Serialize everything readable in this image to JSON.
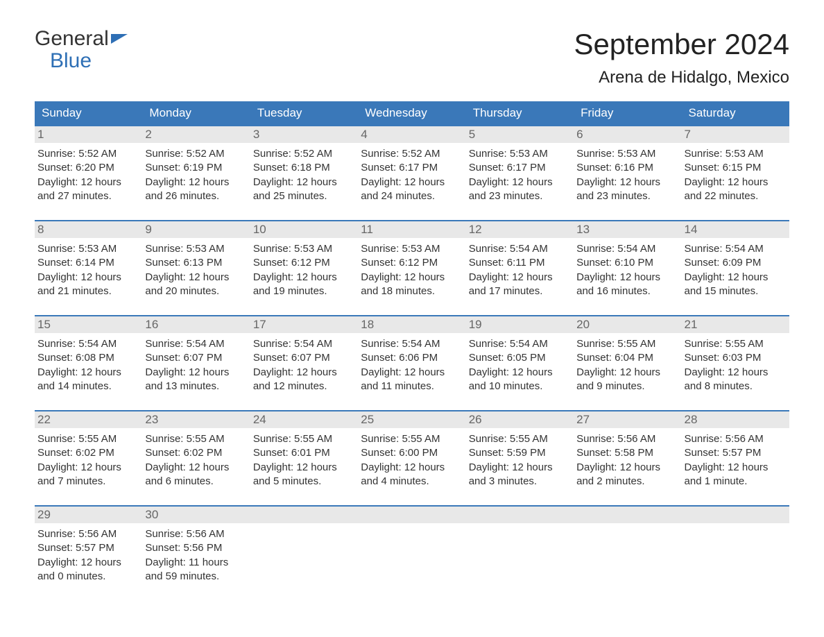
{
  "logo": {
    "word1": "General",
    "word2": "Blue",
    "primary_color": "#333333",
    "accent_color": "#2e6fb5"
  },
  "title": "September 2024",
  "location": "Arena de Hidalgo, Mexico",
  "colors": {
    "header_bg": "#3a78b9",
    "header_text": "#ffffff",
    "daynum_bg": "#e8e8e8",
    "daynum_text": "#666666",
    "body_text": "#333333",
    "border": "#3a78b9",
    "page_bg": "#ffffff"
  },
  "day_headers": [
    "Sunday",
    "Monday",
    "Tuesday",
    "Wednesday",
    "Thursday",
    "Friday",
    "Saturday"
  ],
  "weeks": [
    [
      {
        "num": 1,
        "sunrise": "5:52 AM",
        "sunset": "6:20 PM",
        "daylight": "12 hours and 27 minutes."
      },
      {
        "num": 2,
        "sunrise": "5:52 AM",
        "sunset": "6:19 PM",
        "daylight": "12 hours and 26 minutes."
      },
      {
        "num": 3,
        "sunrise": "5:52 AM",
        "sunset": "6:18 PM",
        "daylight": "12 hours and 25 minutes."
      },
      {
        "num": 4,
        "sunrise": "5:52 AM",
        "sunset": "6:17 PM",
        "daylight": "12 hours and 24 minutes."
      },
      {
        "num": 5,
        "sunrise": "5:53 AM",
        "sunset": "6:17 PM",
        "daylight": "12 hours and 23 minutes."
      },
      {
        "num": 6,
        "sunrise": "5:53 AM",
        "sunset": "6:16 PM",
        "daylight": "12 hours and 23 minutes."
      },
      {
        "num": 7,
        "sunrise": "5:53 AM",
        "sunset": "6:15 PM",
        "daylight": "12 hours and 22 minutes."
      }
    ],
    [
      {
        "num": 8,
        "sunrise": "5:53 AM",
        "sunset": "6:14 PM",
        "daylight": "12 hours and 21 minutes."
      },
      {
        "num": 9,
        "sunrise": "5:53 AM",
        "sunset": "6:13 PM",
        "daylight": "12 hours and 20 minutes."
      },
      {
        "num": 10,
        "sunrise": "5:53 AM",
        "sunset": "6:12 PM",
        "daylight": "12 hours and 19 minutes."
      },
      {
        "num": 11,
        "sunrise": "5:53 AM",
        "sunset": "6:12 PM",
        "daylight": "12 hours and 18 minutes."
      },
      {
        "num": 12,
        "sunrise": "5:54 AM",
        "sunset": "6:11 PM",
        "daylight": "12 hours and 17 minutes."
      },
      {
        "num": 13,
        "sunrise": "5:54 AM",
        "sunset": "6:10 PM",
        "daylight": "12 hours and 16 minutes."
      },
      {
        "num": 14,
        "sunrise": "5:54 AM",
        "sunset": "6:09 PM",
        "daylight": "12 hours and 15 minutes."
      }
    ],
    [
      {
        "num": 15,
        "sunrise": "5:54 AM",
        "sunset": "6:08 PM",
        "daylight": "12 hours and 14 minutes."
      },
      {
        "num": 16,
        "sunrise": "5:54 AM",
        "sunset": "6:07 PM",
        "daylight": "12 hours and 13 minutes."
      },
      {
        "num": 17,
        "sunrise": "5:54 AM",
        "sunset": "6:07 PM",
        "daylight": "12 hours and 12 minutes."
      },
      {
        "num": 18,
        "sunrise": "5:54 AM",
        "sunset": "6:06 PM",
        "daylight": "12 hours and 11 minutes."
      },
      {
        "num": 19,
        "sunrise": "5:54 AM",
        "sunset": "6:05 PM",
        "daylight": "12 hours and 10 minutes."
      },
      {
        "num": 20,
        "sunrise": "5:55 AM",
        "sunset": "6:04 PM",
        "daylight": "12 hours and 9 minutes."
      },
      {
        "num": 21,
        "sunrise": "5:55 AM",
        "sunset": "6:03 PM",
        "daylight": "12 hours and 8 minutes."
      }
    ],
    [
      {
        "num": 22,
        "sunrise": "5:55 AM",
        "sunset": "6:02 PM",
        "daylight": "12 hours and 7 minutes."
      },
      {
        "num": 23,
        "sunrise": "5:55 AM",
        "sunset": "6:02 PM",
        "daylight": "12 hours and 6 minutes."
      },
      {
        "num": 24,
        "sunrise": "5:55 AM",
        "sunset": "6:01 PM",
        "daylight": "12 hours and 5 minutes."
      },
      {
        "num": 25,
        "sunrise": "5:55 AM",
        "sunset": "6:00 PM",
        "daylight": "12 hours and 4 minutes."
      },
      {
        "num": 26,
        "sunrise": "5:55 AM",
        "sunset": "5:59 PM",
        "daylight": "12 hours and 3 minutes."
      },
      {
        "num": 27,
        "sunrise": "5:56 AM",
        "sunset": "5:58 PM",
        "daylight": "12 hours and 2 minutes."
      },
      {
        "num": 28,
        "sunrise": "5:56 AM",
        "sunset": "5:57 PM",
        "daylight": "12 hours and 1 minute."
      }
    ],
    [
      {
        "num": 29,
        "sunrise": "5:56 AM",
        "sunset": "5:57 PM",
        "daylight": "12 hours and 0 minutes."
      },
      {
        "num": 30,
        "sunrise": "5:56 AM",
        "sunset": "5:56 PM",
        "daylight": "11 hours and 59 minutes."
      },
      null,
      null,
      null,
      null,
      null
    ]
  ],
  "labels": {
    "sunrise": "Sunrise: ",
    "sunset": "Sunset: ",
    "daylight": "Daylight: "
  }
}
